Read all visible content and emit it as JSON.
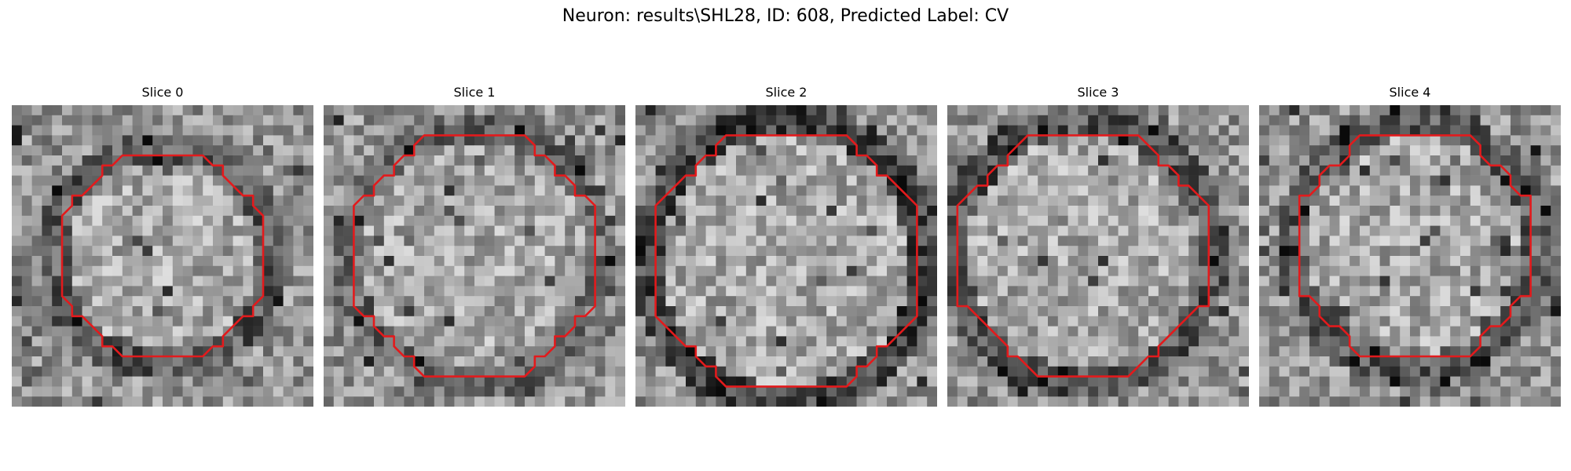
{
  "figure": {
    "title": "Neuron: results\\SHL28, ID: 608, Predicted Label: CV"
  },
  "colors": {
    "contour": "#e31a1c",
    "background": "#ffffff"
  },
  "panels": [
    {
      "title": "Slice 0"
    },
    {
      "title": "Slice 1"
    },
    {
      "title": "Slice 2"
    },
    {
      "title": "Slice 3"
    },
    {
      "title": "Slice 4"
    }
  ]
}
